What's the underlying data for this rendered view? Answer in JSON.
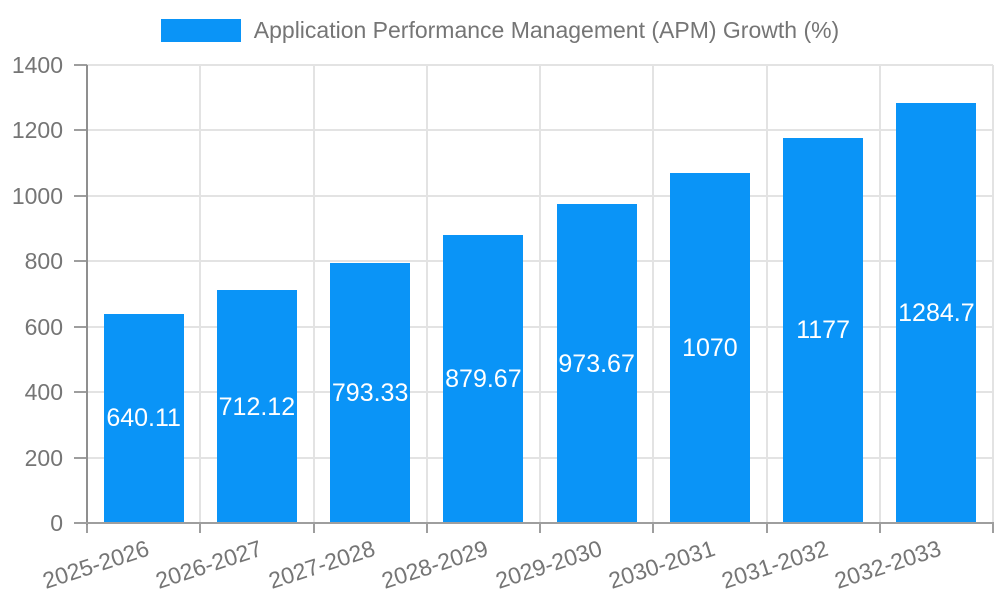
{
  "legend": {
    "label": "Application Performance Management (APM) Growth (%)"
  },
  "colors": {
    "bar": "#0a94f7",
    "grid": "#e3e3e3",
    "axis": "#9e9e9e",
    "tick_text": "#757575",
    "bar_label_text": "#ffffff",
    "background": "#ffffff"
  },
  "chart_data": {
    "type": "bar",
    "title": "Application Performance Management (APM) Growth (%)",
    "categories": [
      "2025-2026",
      "2026-2027",
      "2027-2028",
      "2028-2029",
      "2029-2030",
      "2030-2031",
      "2031-2032",
      "2032-2033"
    ],
    "values": [
      640.11,
      712.12,
      793.33,
      879.67,
      973.67,
      1070,
      1177,
      1284.7
    ],
    "value_labels": [
      "640.11",
      "712.12",
      "793.33",
      "879.67",
      "973.67",
      "1070",
      "1177",
      "1284.7"
    ],
    "series_name": "Application Performance Management (APM) Growth (%)",
    "xlabel": "",
    "ylabel": "",
    "ylim": [
      0,
      1400
    ],
    "yticks": [
      0,
      200,
      400,
      600,
      800,
      1000,
      1200,
      1400
    ],
    "grid": true,
    "legend_position": "top",
    "value_label_position": "middle-of-bar",
    "x_label_rotation_deg": -18
  }
}
